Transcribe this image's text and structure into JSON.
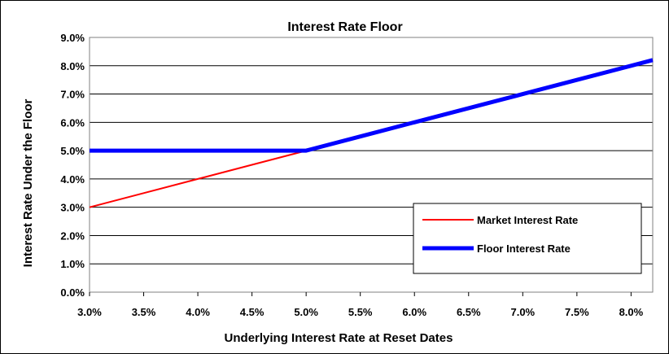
{
  "chart_data": {
    "type": "line",
    "title": "Interest Rate Floor",
    "xlabel": "Underlying Interest Rate at Reset Dates",
    "ylabel": "Interest Rate Under the Floor",
    "xlim": [
      3.0,
      8.2
    ],
    "ylim": [
      0.0,
      9.0
    ],
    "x_ticks": [
      3.0,
      3.5,
      4.0,
      4.5,
      5.0,
      5.5,
      6.0,
      6.5,
      7.0,
      7.5,
      8.0
    ],
    "x_tick_labels": [
      "3.0%",
      "3.5%",
      "4.0%",
      "4.5%",
      "5.0%",
      "5.5%",
      "6.0%",
      "6.5%",
      "7.0%",
      "7.5%",
      "8.0%"
    ],
    "y_ticks": [
      0,
      1,
      2,
      3,
      4,
      5,
      6,
      7,
      8,
      9
    ],
    "y_tick_labels": [
      "0.0%",
      "1.0%",
      "2.0%",
      "3.0%",
      "4.0%",
      "5.0%",
      "6.0%",
      "7.0%",
      "8.0%",
      "9.0%"
    ],
    "grid": "horizontal",
    "legend_position": "bottom-right",
    "series": [
      {
        "name": "Market Interest Rate",
        "color": "#ff0000",
        "x": [
          3.0,
          3.5,
          4.0,
          4.5,
          5.0,
          5.5,
          6.0,
          6.5,
          7.0,
          7.5,
          8.0,
          8.2
        ],
        "y": [
          3.0,
          3.5,
          4.0,
          4.5,
          5.0,
          5.5,
          6.0,
          6.5,
          7.0,
          7.5,
          8.0,
          8.2
        ]
      },
      {
        "name": "Floor Interest Rate",
        "color": "#0000ff",
        "x": [
          3.0,
          3.5,
          4.0,
          4.5,
          5.0,
          5.5,
          6.0,
          6.5,
          7.0,
          7.5,
          8.0,
          8.2
        ],
        "y": [
          5.0,
          5.0,
          5.0,
          5.0,
          5.0,
          5.5,
          6.0,
          6.5,
          7.0,
          7.5,
          8.0,
          8.2
        ]
      }
    ]
  }
}
